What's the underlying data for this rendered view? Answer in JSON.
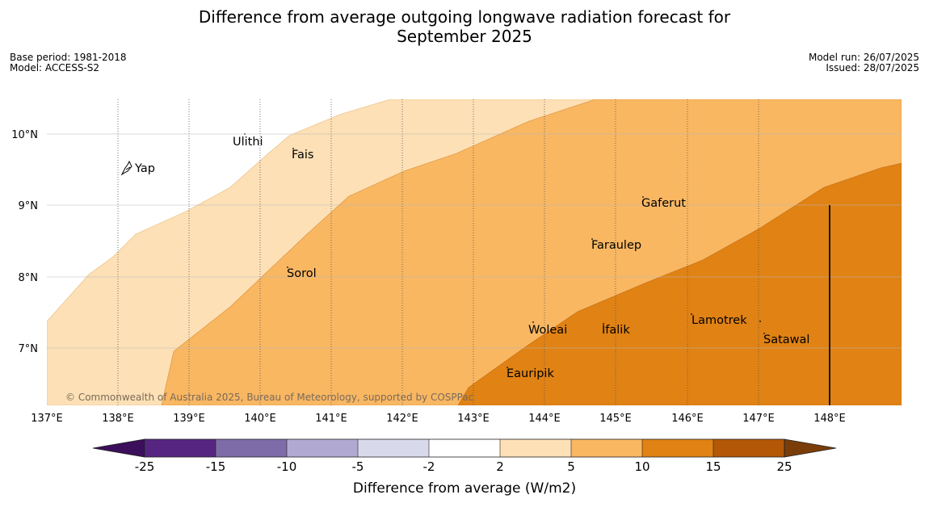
{
  "title_line1": "Difference from average outgoing longwave radiation forecast for",
  "title_line2": "September 2025",
  "meta": {
    "base_period": "Base period: 1981-2018",
    "model": "Model: ACCESS-S2",
    "model_run": "Model run: 26/07/2025",
    "issued": "Issued: 28/07/2025"
  },
  "map": {
    "lon_labels": [
      "137°E",
      "138°E",
      "139°E",
      "140°E",
      "141°E",
      "142°E",
      "143°E",
      "144°E",
      "145°E",
      "146°E",
      "147°E",
      "148°E"
    ],
    "lat_labels": [
      "10°N",
      "9°N",
      "8°N",
      "7°N"
    ],
    "places": [
      {
        "name": "Yap"
      },
      {
        "name": "Ulithi"
      },
      {
        "name": "Fais"
      },
      {
        "name": "Gaferut"
      },
      {
        "name": "Faraulep"
      },
      {
        "name": "Sorol"
      },
      {
        "name": "Woleai"
      },
      {
        "name": "Ifalik"
      },
      {
        "name": "Lamotrek"
      },
      {
        "name": "Satawal"
      },
      {
        "name": "Eauripik"
      }
    ],
    "copyright": "© Commonwealth of Australia 2025, Bureau of Meteorology, supported by COSPPac"
  },
  "colorbar": {
    "ticks": [
      "-25",
      "-15",
      "-10",
      "-5",
      "-2",
      "2",
      "5",
      "10",
      "15",
      "25"
    ],
    "label": "Difference from average (W/m2)",
    "colors": [
      "#3b0f5b",
      "#562581",
      "#7e6ca9",
      "#b2a9d2",
      "#d9d9ec",
      "#ffffff",
      "#fde0b6",
      "#f9b762",
      "#e08214",
      "#b35806",
      "#7a3d0a"
    ]
  }
}
